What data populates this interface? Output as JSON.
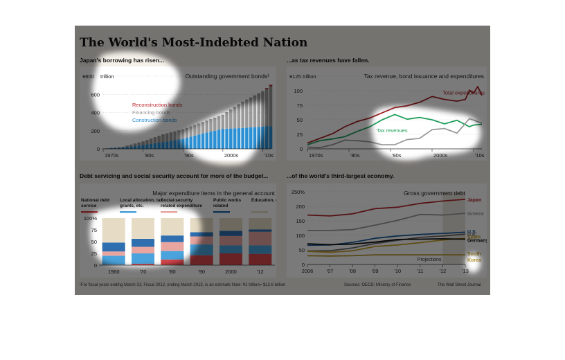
{
  "title": "The World's Most-Indebted Nation",
  "footnote": "¹For fiscal years ending March 31; Fiscal 2012, ending March 2013, is an estimate   Note: ¥1 trillion= $12.6 billion",
  "sources": "Sources: OECD; Ministry of Finance",
  "credit": "The Wall Street Journal",
  "colors": {
    "construction": "#2a8fd3",
    "reconstruction": "#c0272d",
    "financing": "#9a9a9a",
    "revenue": "#1f9e5a",
    "expenditure": "#a62226"
  },
  "chart_data": [
    {
      "type": "area",
      "subhead": "Japan's borrowing has risen...",
      "title": "Outstanding government bonds¹",
      "unit_prefix": "¥",
      "unit_suffix": "trillion",
      "ylim": [
        0,
        800
      ],
      "yticks": [
        0,
        200,
        400,
        600,
        800
      ],
      "xticks": [
        "1970s",
        "'80s",
        "'90s",
        "2000s",
        "'10s"
      ],
      "x_start": 1970,
      "x_end": 2012,
      "tick_years": [
        1970,
        1980,
        1990,
        2000,
        2010
      ],
      "legend": [
        "Reconstruction bonds",
        "Financing bonds",
        "Construction bonds"
      ],
      "series": [
        {
          "name": "Construction bonds",
          "x": [
            1970,
            1975,
            1980,
            1985,
            1990,
            1995,
            2000,
            2005,
            2010,
            2012
          ],
          "values": [
            3,
            15,
            42,
            75,
            110,
            170,
            220,
            230,
            245,
            250
          ]
        },
        {
          "name": "Financing bonds",
          "x": [
            1970,
            1975,
            1980,
            1985,
            1990,
            1995,
            2000,
            2005,
            2010,
            2012
          ],
          "values": [
            0,
            8,
            40,
            85,
            105,
            125,
            155,
            290,
            390,
            440
          ]
        },
        {
          "name": "Reconstruction bonds",
          "x": [
            2010,
            2011,
            2012
          ],
          "values": [
            0,
            8,
            15
          ]
        }
      ]
    },
    {
      "type": "line",
      "subhead": "...as tax revenues have fallen.",
      "title": "Tax revenue, bond issuance and expenditures",
      "unit_prefix": "¥",
      "unit_suffix": "trillion",
      "ylim": [
        0,
        125
      ],
      "yticks": [
        0,
        25,
        50,
        75,
        100,
        125
      ],
      "xticks": [
        "1970s",
        "'80s",
        "'90s",
        "2000s",
        "'10s"
      ],
      "x_start": 1970,
      "x_end": 2012,
      "tick_years": [
        1970,
        1980,
        1990,
        2000,
        2010
      ],
      "series": [
        {
          "name": "Total expenditures",
          "label": "Total expenditures",
          "x": [
            1970,
            1973,
            1976,
            1979,
            1982,
            1985,
            1988,
            1991,
            1994,
            1997,
            2000,
            2003,
            2006,
            2008,
            2009,
            2010,
            2011,
            2012
          ],
          "values": [
            10,
            18,
            26,
            38,
            47,
            53,
            62,
            71,
            74,
            80,
            90,
            85,
            82,
            85,
            101,
            96,
            107,
            92
          ]
        },
        {
          "name": "Tax revenues",
          "label": "Tax revenues",
          "x": [
            1970,
            1973,
            1976,
            1979,
            1982,
            1985,
            1988,
            1991,
            1994,
            1997,
            2000,
            2003,
            2006,
            2009,
            2010,
            2012
          ],
          "values": [
            7,
            14,
            17,
            21,
            30,
            38,
            50,
            59,
            51,
            54,
            50,
            43,
            49,
            38,
            41,
            42
          ]
        },
        {
          "name": "Bond issuance",
          "x": [
            1970,
            1973,
            1976,
            1979,
            1982,
            1985,
            1988,
            1991,
            1994,
            1997,
            2000,
            2003,
            2006,
            2009,
            2012
          ],
          "values": [
            3,
            2,
            7,
            15,
            14,
            12,
            7,
            7,
            16,
            18,
            33,
            35,
            27,
            52,
            44
          ]
        }
      ]
    },
    {
      "type": "bar",
      "subhead": "Debt servicing and social security account for more of the budget...",
      "title": "Major expenditure items in the general account",
      "ylim": [
        0,
        100
      ],
      "yticks": [
        "0",
        "25",
        "50",
        "75",
        "100%"
      ],
      "categories": [
        "1960",
        "'70",
        "'80",
        "'90",
        "2000",
        "'12"
      ],
      "legend": [
        "National debt service",
        "Local allocation, tax grants, etc.",
        "Social-security related expenditure",
        "Public works related",
        "Education, other"
      ],
      "series": [
        {
          "name": "National debt service",
          "values": [
            1,
            3,
            12,
            21,
            25,
            24
          ]
        },
        {
          "name": "Local allocation, tax grants, etc.",
          "values": [
            19,
            22,
            18,
            23,
            17,
            18
          ]
        },
        {
          "name": "Social-security related expenditure",
          "values": [
            9,
            14,
            19,
            17,
            20,
            29
          ]
        },
        {
          "name": "Public works related",
          "values": [
            19,
            17,
            14,
            9,
            11,
            5
          ]
        },
        {
          "name": "Education, other",
          "values": [
            52,
            44,
            37,
            30,
            27,
            24
          ]
        }
      ]
    },
    {
      "type": "line",
      "subhead": "...of the world's third-largest economy.",
      "title": "Gross government debt",
      "ylim": [
        0,
        250
      ],
      "yticks": [
        "0",
        "50",
        "100",
        "150",
        "200",
        "250%"
      ],
      "x_start": 2006,
      "x_end": 2013,
      "xticks": [
        "2006",
        "'07",
        "'08",
        "'09",
        "'10",
        "'11",
        "'12",
        "'13"
      ],
      "projection_start": 2012,
      "projection_label": "Projections",
      "series": [
        {
          "name": "Japan",
          "x": [
            2006,
            2007,
            2008,
            2009,
            2010,
            2011,
            2012,
            2013
          ],
          "values": [
            170,
            167,
            174,
            192,
            197,
            210,
            218,
            224
          ]
        },
        {
          "name": "Greece",
          "x": [
            2006,
            2007,
            2008,
            2009,
            2010,
            2011,
            2012,
            2013
          ],
          "values": [
            117,
            117,
            120,
            135,
            152,
            172,
            170,
            176
          ]
        },
        {
          "name": "U.S.",
          "x": [
            2006,
            2007,
            2008,
            2009,
            2010,
            2011,
            2012,
            2013
          ],
          "values": [
            66,
            67,
            76,
            90,
            98,
            103,
            107,
            111
          ]
        },
        {
          "name": "U.K.",
          "x": [
            2006,
            2007,
            2008,
            2009,
            2010,
            2011,
            2012,
            2013
          ],
          "values": [
            46,
            47,
            57,
            72,
            83,
            93,
            98,
            104
          ]
        },
        {
          "name": "Spain",
          "x": [
            2006,
            2007,
            2008,
            2009,
            2010,
            2011,
            2012,
            2013
          ],
          "values": [
            45,
            42,
            47,
            62,
            67,
            75,
            84,
            90
          ]
        },
        {
          "name": "Germany",
          "x": [
            2006,
            2007,
            2008,
            2009,
            2010,
            2011,
            2012,
            2013
          ],
          "values": [
            71,
            68,
            70,
            77,
            86,
            87,
            88,
            87
          ]
        },
        {
          "name": "South Korea",
          "x": [
            2006,
            2007,
            2008,
            2009,
            2010,
            2011,
            2012,
            2013
          ],
          "values": [
            30,
            29,
            30,
            33,
            33,
            33,
            33,
            33
          ]
        }
      ],
      "series_colors": [
        "#b3282d",
        "#9a9a9a",
        "#1f5fa0",
        "#6b6b6b",
        "#c9a227",
        "#111111",
        "#b8962e"
      ]
    }
  ]
}
